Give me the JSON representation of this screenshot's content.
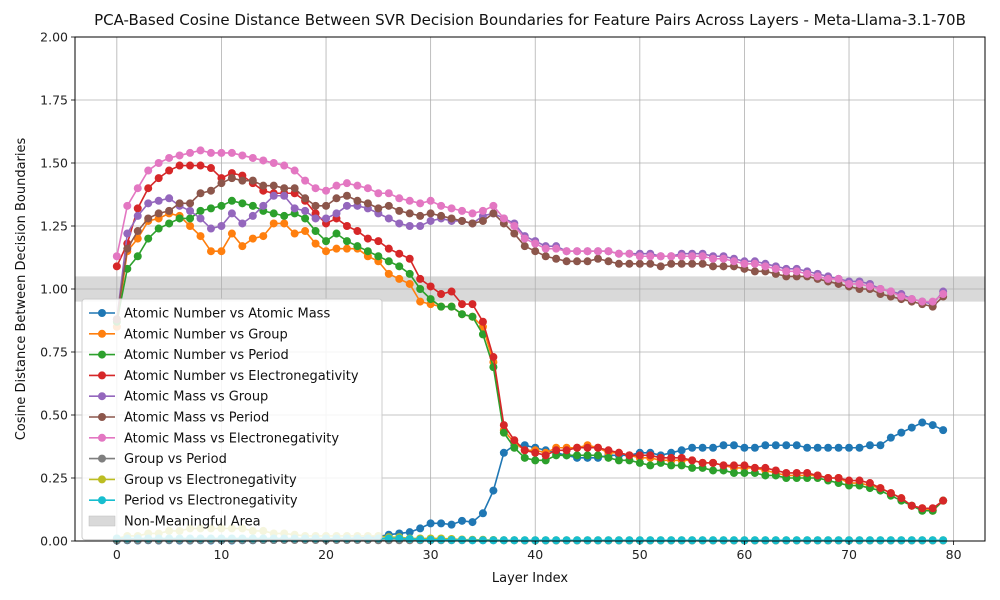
{
  "chart_data": {
    "type": "line",
    "title": "PCA-Based Cosine Distance Between SVR Decision Boundaries for Feature Pairs Across Layers - Meta-Llama-3.1-70B",
    "xlabel": "Layer Index",
    "ylabel": "Cosine Distance Between Decision Boundaries",
    "xlim": [
      -4,
      83
    ],
    "ylim": [
      0,
      2.0
    ],
    "xticks": [
      0,
      10,
      20,
      30,
      40,
      50,
      60,
      70,
      80
    ],
    "yticks": [
      0.0,
      0.25,
      0.5,
      0.75,
      1.0,
      1.25,
      1.5,
      1.75,
      2.0
    ],
    "ytick_labels": [
      "0.00",
      "0.25",
      "0.50",
      "0.75",
      "1.00",
      "1.25",
      "1.50",
      "1.75",
      "2.00"
    ],
    "grid": true,
    "legend_position": "lower-left",
    "band": {
      "label": "Non-Meaningful Area",
      "y_range": [
        0.95,
        1.05
      ],
      "color": "#d9d9d9"
    },
    "x": [
      0,
      1,
      2,
      3,
      4,
      5,
      6,
      7,
      8,
      9,
      10,
      11,
      12,
      13,
      14,
      15,
      16,
      17,
      18,
      19,
      20,
      21,
      22,
      23,
      24,
      25,
      26,
      27,
      28,
      29,
      30,
      31,
      32,
      33,
      34,
      35,
      36,
      37,
      38,
      39,
      40,
      41,
      42,
      43,
      44,
      45,
      46,
      47,
      48,
      49,
      50,
      51,
      52,
      53,
      54,
      55,
      56,
      57,
      58,
      59,
      60,
      61,
      62,
      63,
      64,
      65,
      66,
      67,
      68,
      69,
      70,
      71,
      72,
      73,
      74,
      75,
      76,
      77,
      78,
      79
    ],
    "series": [
      {
        "name": "Atomic Number vs Atomic Mass",
        "color": "#1f77b4",
        "values": [
          0.002,
          0.003,
          0.002,
          0.003,
          0.002,
          0.003,
          0.002,
          0.002,
          0.003,
          0.002,
          0.003,
          0.002,
          0.003,
          0.003,
          0.004,
          0.004,
          0.005,
          0.006,
          0.006,
          0.007,
          0.008,
          0.009,
          0.01,
          0.012,
          0.014,
          0.018,
          0.025,
          0.03,
          0.035,
          0.05,
          0.07,
          0.07,
          0.065,
          0.08,
          0.075,
          0.11,
          0.2,
          0.35,
          0.38,
          0.38,
          0.37,
          0.36,
          0.35,
          0.34,
          0.33,
          0.33,
          0.33,
          0.34,
          0.34,
          0.34,
          0.35,
          0.35,
          0.34,
          0.35,
          0.36,
          0.37,
          0.37,
          0.37,
          0.38,
          0.38,
          0.37,
          0.37,
          0.38,
          0.38,
          0.38,
          0.38,
          0.37,
          0.37,
          0.37,
          0.37,
          0.37,
          0.37,
          0.38,
          0.38,
          0.41,
          0.43,
          0.45,
          0.47,
          0.46,
          0.44
        ]
      },
      {
        "name": "Atomic Number vs Group",
        "color": "#ff7f0e",
        "values": [
          0.85,
          1.15,
          1.2,
          1.27,
          1.28,
          1.3,
          1.29,
          1.25,
          1.21,
          1.15,
          1.15,
          1.22,
          1.17,
          1.2,
          1.21,
          1.26,
          1.26,
          1.22,
          1.23,
          1.18,
          1.15,
          1.16,
          1.16,
          1.16,
          1.13,
          1.11,
          1.06,
          1.04,
          1.02,
          0.95,
          0.94,
          0.93,
          0.93,
          0.9,
          0.89,
          0.85,
          0.71,
          0.44,
          0.39,
          0.36,
          0.36,
          0.35,
          0.37,
          0.37,
          0.37,
          0.38,
          0.37,
          0.35,
          0.35,
          0.34,
          0.33,
          0.33,
          0.32,
          0.32,
          0.32,
          0.32,
          0.31,
          0.31,
          0.3,
          0.29,
          0.29,
          0.29,
          0.28,
          0.27,
          0.26,
          0.26,
          0.26,
          0.26,
          0.25,
          0.25,
          0.23,
          0.23,
          0.22,
          0.21,
          0.19,
          0.17,
          0.14,
          0.13,
          0.12,
          0.16
        ]
      },
      {
        "name": "Atomic Number vs Period",
        "color": "#2ca02c",
        "values": [
          0.87,
          1.08,
          1.13,
          1.2,
          1.24,
          1.26,
          1.28,
          1.28,
          1.31,
          1.32,
          1.33,
          1.35,
          1.34,
          1.33,
          1.31,
          1.3,
          1.29,
          1.3,
          1.28,
          1.23,
          1.19,
          1.22,
          1.19,
          1.17,
          1.15,
          1.13,
          1.11,
          1.09,
          1.06,
          1.0,
          0.96,
          0.93,
          0.93,
          0.9,
          0.89,
          0.82,
          0.69,
          0.43,
          0.37,
          0.33,
          0.32,
          0.32,
          0.34,
          0.34,
          0.34,
          0.34,
          0.34,
          0.33,
          0.32,
          0.32,
          0.31,
          0.3,
          0.31,
          0.3,
          0.3,
          0.29,
          0.29,
          0.28,
          0.28,
          0.27,
          0.27,
          0.27,
          0.26,
          0.26,
          0.25,
          0.25,
          0.25,
          0.25,
          0.24,
          0.23,
          0.22,
          0.22,
          0.21,
          0.2,
          0.18,
          0.16,
          0.14,
          0.12,
          0.12,
          0.16
        ]
      },
      {
        "name": "Atomic Number vs Electronegativity",
        "color": "#d62728",
        "values": [
          1.09,
          1.18,
          1.32,
          1.4,
          1.44,
          1.47,
          1.49,
          1.49,
          1.49,
          1.48,
          1.44,
          1.46,
          1.45,
          1.42,
          1.39,
          1.38,
          1.38,
          1.38,
          1.35,
          1.3,
          1.26,
          1.28,
          1.25,
          1.23,
          1.2,
          1.19,
          1.16,
          1.14,
          1.12,
          1.04,
          1.01,
          0.98,
          0.99,
          0.94,
          0.94,
          0.87,
          0.73,
          0.46,
          0.4,
          0.36,
          0.35,
          0.34,
          0.36,
          0.36,
          0.37,
          0.37,
          0.37,
          0.36,
          0.35,
          0.34,
          0.34,
          0.34,
          0.33,
          0.33,
          0.33,
          0.32,
          0.31,
          0.31,
          0.3,
          0.3,
          0.3,
          0.29,
          0.29,
          0.28,
          0.27,
          0.27,
          0.27,
          0.26,
          0.25,
          0.25,
          0.24,
          0.24,
          0.23,
          0.21,
          0.19,
          0.17,
          0.14,
          0.13,
          0.13,
          0.16
        ]
      },
      {
        "name": "Atomic Mass vs Group",
        "color": "#9467bd",
        "values": [
          0.88,
          1.22,
          1.29,
          1.34,
          1.35,
          1.36,
          1.33,
          1.31,
          1.28,
          1.24,
          1.25,
          1.3,
          1.26,
          1.29,
          1.33,
          1.37,
          1.37,
          1.32,
          1.31,
          1.28,
          1.28,
          1.3,
          1.33,
          1.33,
          1.32,
          1.3,
          1.28,
          1.26,
          1.25,
          1.25,
          1.27,
          1.28,
          1.27,
          1.27,
          1.26,
          1.29,
          1.3,
          1.28,
          1.26,
          1.21,
          1.19,
          1.17,
          1.17,
          1.15,
          1.15,
          1.15,
          1.15,
          1.15,
          1.14,
          1.14,
          1.14,
          1.14,
          1.13,
          1.13,
          1.14,
          1.14,
          1.14,
          1.13,
          1.13,
          1.12,
          1.11,
          1.11,
          1.1,
          1.09,
          1.08,
          1.08,
          1.07,
          1.06,
          1.05,
          1.04,
          1.03,
          1.03,
          1.02,
          1.0,
          0.99,
          0.98,
          0.96,
          0.95,
          0.94,
          0.99
        ]
      },
      {
        "name": "Atomic Mass vs Period",
        "color": "#8c564b",
        "values": [
          0.88,
          1.16,
          1.23,
          1.28,
          1.3,
          1.31,
          1.34,
          1.34,
          1.38,
          1.39,
          1.42,
          1.44,
          1.43,
          1.43,
          1.41,
          1.41,
          1.4,
          1.4,
          1.36,
          1.33,
          1.33,
          1.36,
          1.37,
          1.35,
          1.34,
          1.32,
          1.33,
          1.31,
          1.3,
          1.29,
          1.3,
          1.29,
          1.28,
          1.27,
          1.26,
          1.27,
          1.3,
          1.26,
          1.22,
          1.17,
          1.15,
          1.13,
          1.12,
          1.11,
          1.11,
          1.11,
          1.12,
          1.11,
          1.1,
          1.1,
          1.1,
          1.1,
          1.09,
          1.1,
          1.1,
          1.1,
          1.1,
          1.09,
          1.09,
          1.09,
          1.08,
          1.07,
          1.07,
          1.06,
          1.05,
          1.05,
          1.05,
          1.04,
          1.03,
          1.02,
          1.01,
          1.0,
          1.0,
          0.98,
          0.97,
          0.96,
          0.95,
          0.94,
          0.93,
          0.97
        ]
      },
      {
        "name": "Atomic Mass vs Electronegativity",
        "color": "#e377c2",
        "values": [
          1.13,
          1.33,
          1.4,
          1.47,
          1.5,
          1.52,
          1.53,
          1.54,
          1.55,
          1.54,
          1.54,
          1.54,
          1.53,
          1.52,
          1.51,
          1.5,
          1.49,
          1.47,
          1.43,
          1.4,
          1.39,
          1.41,
          1.42,
          1.41,
          1.4,
          1.38,
          1.38,
          1.36,
          1.35,
          1.34,
          1.35,
          1.33,
          1.32,
          1.31,
          1.3,
          1.31,
          1.33,
          1.28,
          1.25,
          1.2,
          1.18,
          1.16,
          1.16,
          1.15,
          1.15,
          1.15,
          1.15,
          1.15,
          1.14,
          1.14,
          1.13,
          1.13,
          1.13,
          1.13,
          1.13,
          1.13,
          1.13,
          1.12,
          1.12,
          1.11,
          1.1,
          1.1,
          1.09,
          1.08,
          1.07,
          1.07,
          1.06,
          1.05,
          1.04,
          1.04,
          1.02,
          1.02,
          1.01,
          1.0,
          0.99,
          0.97,
          0.96,
          0.95,
          0.95,
          0.98
        ]
      },
      {
        "name": "Group vs Period",
        "color": "#7f7f7f",
        "values": [
          0.003,
          0.004,
          0.003,
          0.004,
          0.003,
          0.004,
          0.004,
          0.003,
          0.004,
          0.004,
          0.004,
          0.004,
          0.004,
          0.004,
          0.004,
          0.004,
          0.004,
          0.004,
          0.004,
          0.004,
          0.004,
          0.004,
          0.004,
          0.004,
          0.004,
          0.003,
          0.003,
          0.003,
          0.003,
          0.003,
          0.003,
          0.003,
          0.003,
          0.003,
          0.003,
          0.003,
          0.003,
          0.003,
          0.003,
          0.002,
          0.002,
          0.002,
          0.002,
          0.002,
          0.002,
          0.002,
          0.002,
          0.002,
          0.002,
          0.002,
          0.002,
          0.002,
          0.002,
          0.002,
          0.002,
          0.002,
          0.002,
          0.002,
          0.002,
          0.002,
          0.002,
          0.002,
          0.002,
          0.002,
          0.002,
          0.002,
          0.002,
          0.002,
          0.002,
          0.002,
          0.002,
          0.002,
          0.002,
          0.002,
          0.002,
          0.002,
          0.002,
          0.002,
          0.002,
          0.002
        ]
      },
      {
        "name": "Group vs Electronegativity",
        "color": "#bcbd22",
        "values": [
          0.01,
          0.02,
          0.02,
          0.03,
          0.03,
          0.04,
          0.04,
          0.05,
          0.05,
          0.05,
          0.05,
          0.05,
          0.05,
          0.04,
          0.04,
          0.03,
          0.03,
          0.025,
          0.02,
          0.02,
          0.02,
          0.02,
          0.02,
          0.02,
          0.02,
          0.02,
          0.015,
          0.015,
          0.01,
          0.01,
          0.01,
          0.01,
          0.008,
          0.006,
          0.005,
          0.005,
          0.004,
          0.003,
          0.003,
          0.003,
          0.003,
          0.003,
          0.003,
          0.003,
          0.003,
          0.003,
          0.003,
          0.003,
          0.003,
          0.003,
          0.003,
          0.003,
          0.003,
          0.003,
          0.003,
          0.003,
          0.003,
          0.003,
          0.003,
          0.003,
          0.003,
          0.003,
          0.003,
          0.003,
          0.003,
          0.003,
          0.003,
          0.003,
          0.003,
          0.003,
          0.003,
          0.003,
          0.003,
          0.003,
          0.003,
          0.003,
          0.003,
          0.003,
          0.003,
          0.003
        ]
      },
      {
        "name": "Period vs Electronegativity",
        "color": "#17becf",
        "values": [
          0.01,
          0.01,
          0.01,
          0.01,
          0.01,
          0.01,
          0.01,
          0.01,
          0.01,
          0.01,
          0.01,
          0.01,
          0.01,
          0.01,
          0.01,
          0.01,
          0.01,
          0.01,
          0.01,
          0.01,
          0.01,
          0.01,
          0.01,
          0.01,
          0.01,
          0.01,
          0.01,
          0.01,
          0.008,
          0.006,
          0.005,
          0.005,
          0.004,
          0.004,
          0.003,
          0.003,
          0.003,
          0.003,
          0.003,
          0.003,
          0.003,
          0.003,
          0.003,
          0.003,
          0.003,
          0.003,
          0.003,
          0.003,
          0.003,
          0.003,
          0.003,
          0.003,
          0.003,
          0.003,
          0.003,
          0.003,
          0.003,
          0.003,
          0.003,
          0.003,
          0.003,
          0.003,
          0.003,
          0.003,
          0.003,
          0.003,
          0.003,
          0.003,
          0.003,
          0.003,
          0.003,
          0.003,
          0.003,
          0.003,
          0.003,
          0.003,
          0.003,
          0.003,
          0.003,
          0.003
        ]
      }
    ]
  }
}
